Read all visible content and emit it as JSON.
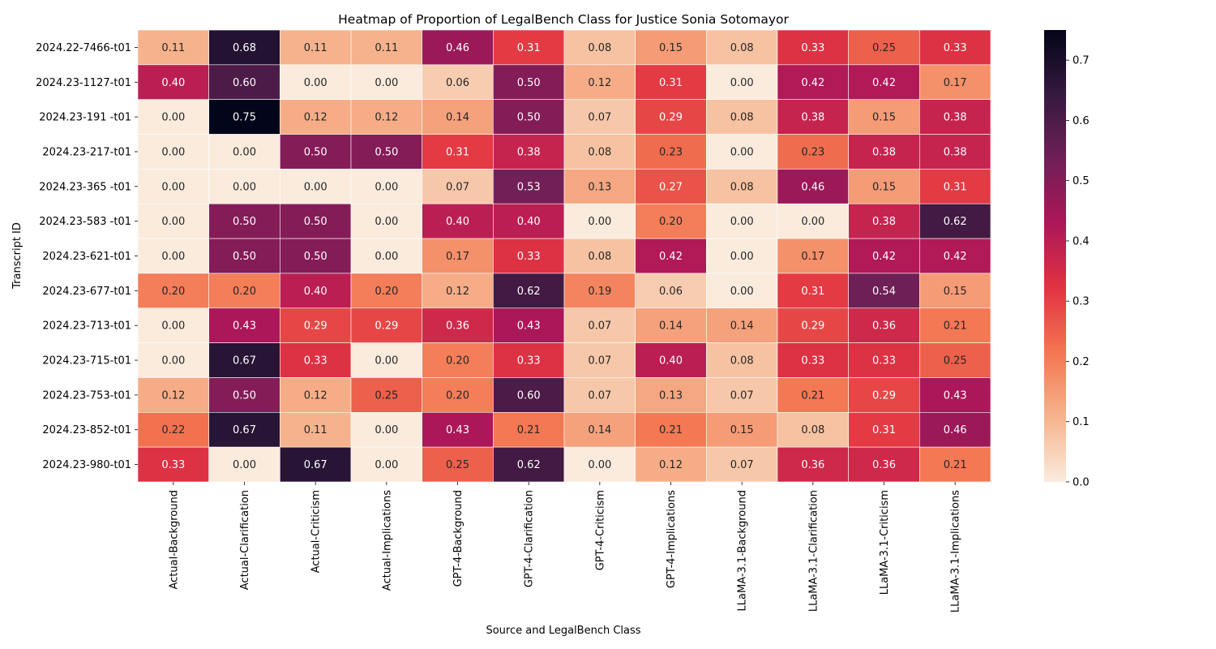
{
  "chart_data": {
    "type": "heatmap",
    "title": "Heatmap of Proportion of LegalBench Class for Justice Sonia Sotomayor",
    "xlabel": "Source and LegalBench Class",
    "ylabel": "Transcript ID",
    "rows": [
      "2024.22-7466-t01",
      "2024.23-1127-t01",
      "2024.23-191 -t01",
      "2024.23-217-t01",
      "2024.23-365 -t01",
      "2024.23-583 -t01",
      "2024.23-621-t01",
      "2024.23-677-t01",
      "2024.23-713-t01",
      "2024.23-715-t01",
      "2024.23-753-t01",
      "2024.23-852-t01",
      "2024.23-980-t01"
    ],
    "columns": [
      "Actual-Background",
      "Actual-Clarification",
      "Actual-Criticism",
      "Actual-Implications",
      "GPT-4-Background",
      "GPT-4-Clarification",
      "GPT-4-Criticism",
      "GPT-4-Implications",
      "LLaMA-3.1-Background",
      "LLaMA-3.1-Clarification",
      "LLaMA-3.1-Criticism",
      "LLaMA-3.1-Implications"
    ],
    "values": [
      [
        0.11,
        0.68,
        0.11,
        0.11,
        0.46,
        0.31,
        0.08,
        0.15,
        0.08,
        0.33,
        0.25,
        0.33
      ],
      [
        0.4,
        0.6,
        0.0,
        0.0,
        0.06,
        0.5,
        0.12,
        0.31,
        0.0,
        0.42,
        0.42,
        0.17
      ],
      [
        0.0,
        0.75,
        0.12,
        0.12,
        0.14,
        0.5,
        0.07,
        0.29,
        0.08,
        0.38,
        0.15,
        0.38
      ],
      [
        0.0,
        0.0,
        0.5,
        0.5,
        0.31,
        0.38,
        0.08,
        0.23,
        0.0,
        0.23,
        0.38,
        0.38
      ],
      [
        0.0,
        0.0,
        0.0,
        0.0,
        0.07,
        0.53,
        0.13,
        0.27,
        0.08,
        0.46,
        0.15,
        0.31
      ],
      [
        0.0,
        0.5,
        0.5,
        0.0,
        0.4,
        0.4,
        0.0,
        0.2,
        0.0,
        0.0,
        0.38,
        0.62
      ],
      [
        0.0,
        0.5,
        0.5,
        0.0,
        0.17,
        0.33,
        0.08,
        0.42,
        0.0,
        0.17,
        0.42,
        0.42
      ],
      [
        0.2,
        0.2,
        0.4,
        0.2,
        0.12,
        0.62,
        0.19,
        0.06,
        0.0,
        0.31,
        0.54,
        0.15
      ],
      [
        0.0,
        0.43,
        0.29,
        0.29,
        0.36,
        0.43,
        0.07,
        0.14,
        0.14,
        0.29,
        0.36,
        0.21
      ],
      [
        0.0,
        0.67,
        0.33,
        0.0,
        0.2,
        0.33,
        0.07,
        0.4,
        0.08,
        0.33,
        0.33,
        0.25
      ],
      [
        0.12,
        0.5,
        0.12,
        0.25,
        0.2,
        0.6,
        0.07,
        0.13,
        0.07,
        0.21,
        0.29,
        0.43
      ],
      [
        0.22,
        0.67,
        0.11,
        0.0,
        0.43,
        0.21,
        0.14,
        0.21,
        0.15,
        0.08,
        0.31,
        0.46
      ],
      [
        0.33,
        0.0,
        0.67,
        0.0,
        0.25,
        0.62,
        0.0,
        0.12,
        0.07,
        0.36,
        0.36,
        0.21
      ]
    ],
    "value_format": "0.00",
    "colorbar": {
      "range": [
        0.0,
        0.75
      ],
      "ticks": [
        "0.0",
        "0.1",
        "0.2",
        "0.3",
        "0.4",
        "0.5",
        "0.6",
        "0.7"
      ],
      "colormap": "rocket_r",
      "colors": [
        "#faebdd",
        "#f6b48e",
        "#f37651",
        "#e13342",
        "#ad1759",
        "#701f57",
        "#35193e",
        "#03051a"
      ]
    },
    "grid": false
  }
}
